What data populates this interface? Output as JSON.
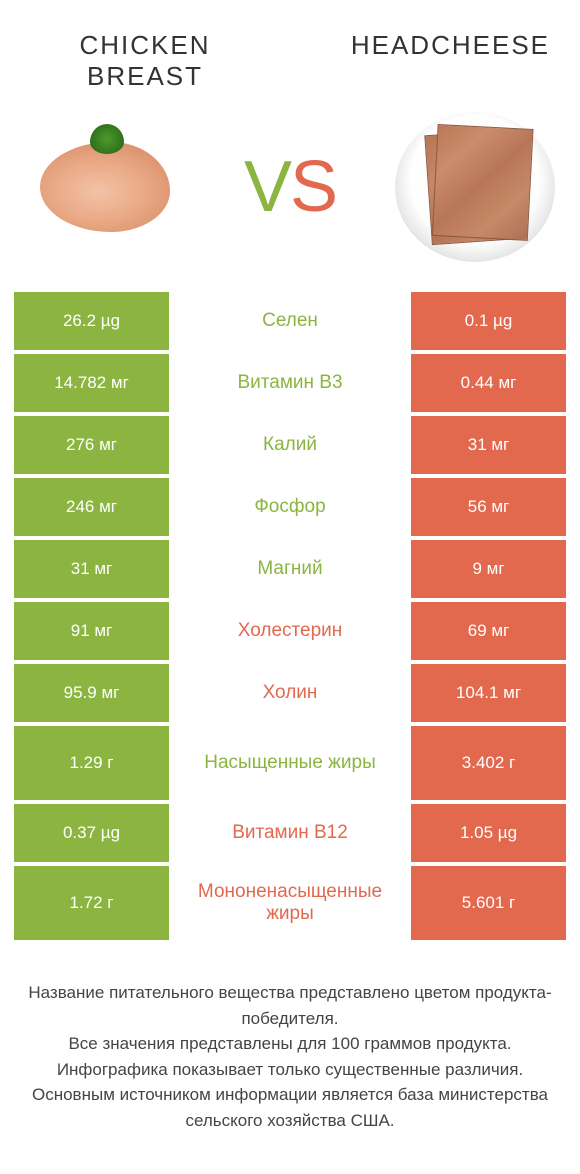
{
  "header": {
    "left_title": "CHICKEN BREAST",
    "right_title": "HEADCHEESE",
    "vs_v": "V",
    "vs_s": "S"
  },
  "colors": {
    "green": "#8bb540",
    "red": "#e2694e",
    "text": "#444444",
    "background": "#ffffff"
  },
  "rows": [
    {
      "left": "26.2 µg",
      "label": "Селен",
      "right": "0.1 µg",
      "winner": "green",
      "tall": false
    },
    {
      "left": "14.782 мг",
      "label": "Витамин B3",
      "right": "0.44 мг",
      "winner": "green",
      "tall": false
    },
    {
      "left": "276 мг",
      "label": "Калий",
      "right": "31 мг",
      "winner": "green",
      "tall": false
    },
    {
      "left": "246 мг",
      "label": "Фосфор",
      "right": "56 мг",
      "winner": "green",
      "tall": false
    },
    {
      "left": "31 мг",
      "label": "Магний",
      "right": "9 мг",
      "winner": "green",
      "tall": false
    },
    {
      "left": "91 мг",
      "label": "Холестерин",
      "right": "69 мг",
      "winner": "red",
      "tall": false
    },
    {
      "left": "95.9 мг",
      "label": "Холин",
      "right": "104.1 мг",
      "winner": "red",
      "tall": false
    },
    {
      "left": "1.29 г",
      "label": "Насыщенные жиры",
      "right": "3.402 г",
      "winner": "green",
      "tall": true
    },
    {
      "left": "0.37 µg",
      "label": "Витамин B12",
      "right": "1.05 µg",
      "winner": "red",
      "tall": false
    },
    {
      "left": "1.72 г",
      "label": "Мононенасыщенные жиры",
      "right": "5.601 г",
      "winner": "red",
      "tall": true
    }
  ],
  "footer": {
    "line1": "Название питательного вещества представлено цветом продукта-победителя.",
    "line2": "Все значения представлены для 100 граммов продукта.",
    "line3": "Инфографика показывает только существенные различия.",
    "line4": "Основным источником информации является база министерства сельского хозяйства США."
  }
}
